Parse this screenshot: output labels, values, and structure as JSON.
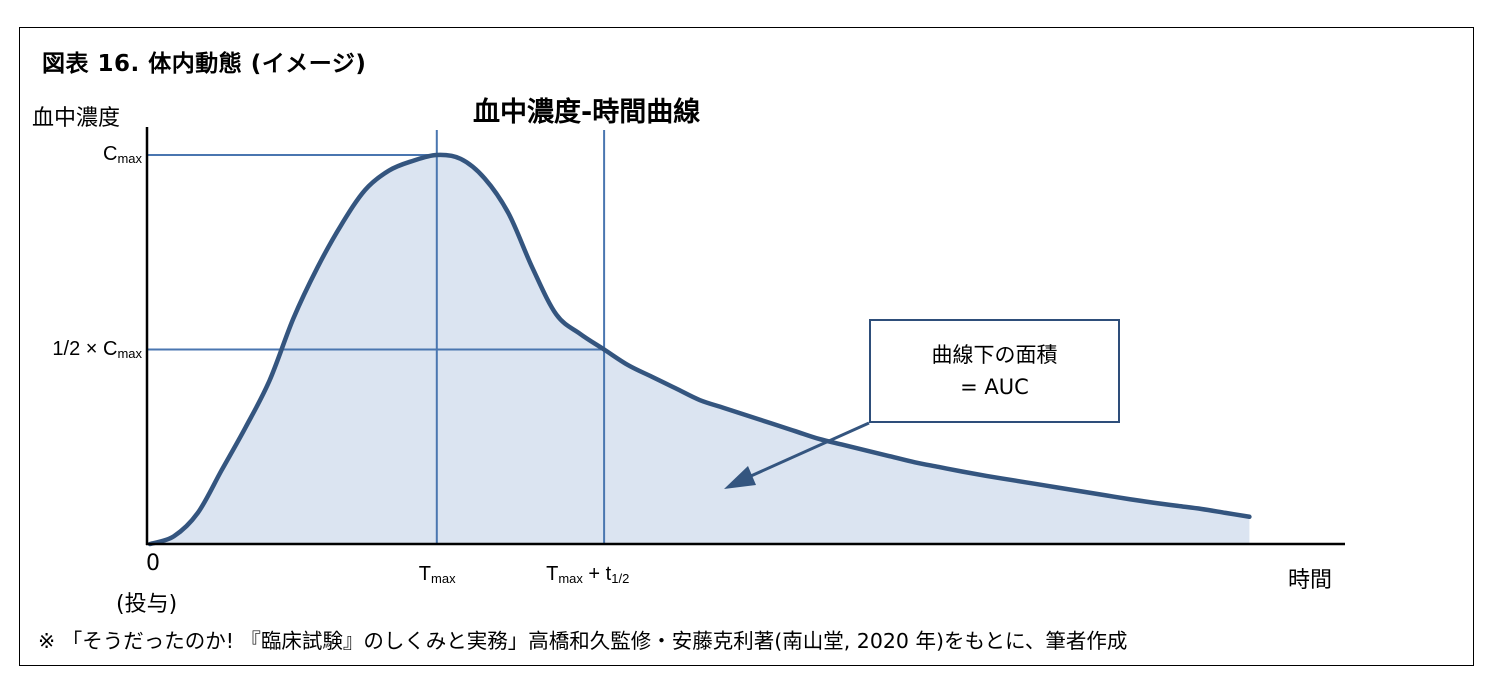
{
  "figure_title": "図表 16.  体内動態 (イメージ)",
  "chart_title": "血中濃度-時間曲線",
  "y_axis_label": "血中濃度",
  "x_axis_label": "時間",
  "origin_label": "0",
  "origin_sublabel": "(投与)",
  "auc_box": {
    "line1": "曲線下の面積",
    "line2": "= AUC"
  },
  "source_note": "※ 「そうだったのか! 『臨床試験』のしくみと実務」高橋和久監修・安藤克利著(南山堂, 2020 年)をもとに、筆者作成",
  "colors": {
    "curve": "#34557f",
    "fill": "#dbe4f1",
    "guide": "#4a76b0",
    "axis": "#000000"
  },
  "chart_data": {
    "type": "area",
    "title": "血中濃度-時間曲線",
    "xlabel": "時間",
    "ylabel": "血中濃度",
    "y_ticks": [
      {
        "label": "C",
        "sub": "max",
        "value": 1.0
      },
      {
        "label": "1/2 × C",
        "sub": "max",
        "value": 0.5
      }
    ],
    "x_ticks": [
      {
        "label": "T",
        "sub": "max",
        "value": 0.24
      },
      {
        "label": "T",
        "sub": "max",
        "suffix": " + t",
        "sub2": "1/2",
        "value": 0.38
      }
    ],
    "xlim": [
      0,
      1
    ],
    "ylim": [
      0,
      1
    ],
    "x": [
      0,
      0.02,
      0.04,
      0.06,
      0.08,
      0.1,
      0.12,
      0.14,
      0.16,
      0.18,
      0.2,
      0.22,
      0.24,
      0.26,
      0.28,
      0.3,
      0.32,
      0.34,
      0.36,
      0.38,
      0.4,
      0.42,
      0.44,
      0.46,
      0.48,
      0.5,
      0.52,
      0.54,
      0.56,
      0.58,
      0.6,
      0.62,
      0.64,
      0.66,
      0.68,
      0.7,
      0.72,
      0.74,
      0.76,
      0.78,
      0.8,
      0.82,
      0.84,
      0.86,
      0.88,
      0.9,
      0.92
    ],
    "values": [
      0.0,
      0.02,
      0.08,
      0.19,
      0.3,
      0.42,
      0.58,
      0.71,
      0.82,
      0.91,
      0.96,
      0.985,
      1.0,
      0.99,
      0.94,
      0.85,
      0.71,
      0.59,
      0.54,
      0.5,
      0.46,
      0.43,
      0.4,
      0.37,
      0.35,
      0.33,
      0.31,
      0.29,
      0.27,
      0.255,
      0.24,
      0.225,
      0.21,
      0.198,
      0.186,
      0.175,
      0.165,
      0.155,
      0.145,
      0.135,
      0.125,
      0.115,
      0.106,
      0.098,
      0.09,
      0.08,
      0.07
    ],
    "grid": false,
    "legend": "none"
  }
}
